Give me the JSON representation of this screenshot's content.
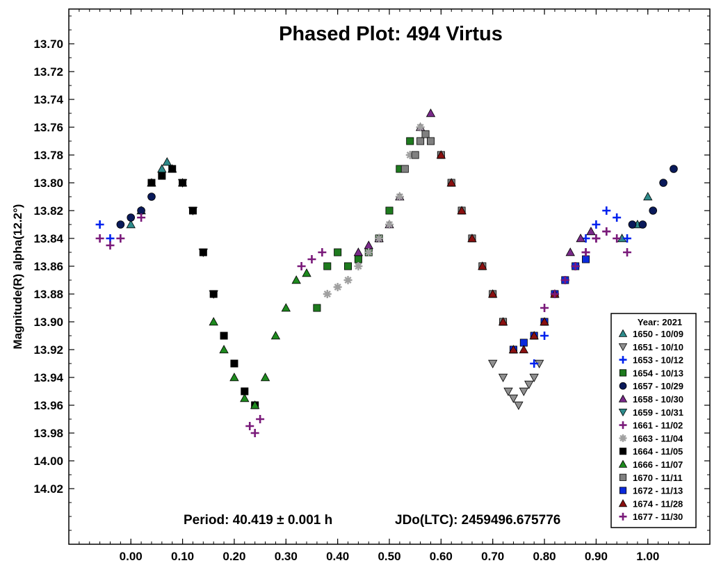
{
  "chart_data": {
    "type": "scatter",
    "title": "Phased Plot: 494 Virtus",
    "xlabel": "",
    "ylabel": "Magnitude(R) alpha(12.2°)",
    "xlim": [
      -0.12,
      1.12
    ],
    "ylim": [
      14.06,
      13.675
    ],
    "y_inverted": true,
    "x_ticks": [
      0.0,
      0.1,
      0.2,
      0.3,
      0.4,
      0.5,
      0.6,
      0.7,
      0.8,
      0.9,
      1.0
    ],
    "x_tick_labels": [
      "0.00",
      "0.10",
      "0.20",
      "0.30",
      "0.40",
      "0.50",
      "0.60",
      "0.70",
      "0.80",
      "0.90",
      "1.00"
    ],
    "y_ticks": [
      13.7,
      13.72,
      13.74,
      13.76,
      13.78,
      13.8,
      13.82,
      13.84,
      13.86,
      13.88,
      13.9,
      13.92,
      13.94,
      13.96,
      13.98,
      14.0,
      14.02
    ],
    "y_tick_labels": [
      "13.70",
      "13.72",
      "13.74",
      "13.76",
      "13.78",
      "13.80",
      "13.82",
      "13.84",
      "13.86",
      "13.88",
      "13.90",
      "13.92",
      "13.94",
      "13.96",
      "13.98",
      "14.00",
      "14.02"
    ],
    "grid": false,
    "annotations": {
      "period": "Period: 40.419 ± 0.001 h",
      "epoch": "JDo(LTC): 2459496.675776"
    },
    "legend": {
      "title": "Year: 2021",
      "placement": "bottom-right"
    },
    "series": [
      {
        "name": "1650 - 10/09",
        "marker": "triangle-up",
        "color": "#2e8b8b",
        "x": [
          0.0,
          0.02,
          0.04,
          0.06,
          0.07,
          0.08,
          0.1,
          0.95,
          0.98,
          1.0
        ],
        "y": [
          13.83,
          13.82,
          13.8,
          13.79,
          13.785,
          13.79,
          13.8,
          13.84,
          13.83,
          13.81
        ]
      },
      {
        "name": "1651 - 10/10",
        "marker": "triangle-down",
        "color": "#909090",
        "x": [
          0.7,
          0.72,
          0.73,
          0.74,
          0.75,
          0.76,
          0.77,
          0.78,
          0.79
        ],
        "y": [
          13.93,
          13.94,
          13.95,
          13.955,
          13.96,
          13.95,
          13.945,
          13.94,
          13.93
        ]
      },
      {
        "name": "1653 - 10/12",
        "marker": "plus",
        "color": "#0022ee",
        "x": [
          -0.06,
          -0.04,
          0.78,
          0.8,
          0.82,
          0.84,
          0.86,
          0.88,
          0.9,
          0.92,
          0.94,
          0.96
        ],
        "y": [
          13.83,
          13.84,
          13.93,
          13.91,
          13.88,
          13.87,
          13.86,
          13.84,
          13.83,
          13.82,
          13.825,
          13.84
        ]
      },
      {
        "name": "1654 - 10/13",
        "marker": "square",
        "color": "#1e7a1e",
        "x": [
          0.36,
          0.38,
          0.4,
          0.42,
          0.44,
          0.46,
          0.48,
          0.5,
          0.52,
          0.54
        ],
        "y": [
          13.89,
          13.86,
          13.85,
          13.86,
          13.855,
          13.85,
          13.84,
          13.82,
          13.79,
          13.77
        ]
      },
      {
        "name": "1657 - 10/29",
        "marker": "circle",
        "color": "#0a1a5a",
        "x": [
          -0.02,
          0.0,
          0.02,
          0.04,
          0.97,
          0.99,
          1.01,
          1.03,
          1.05
        ],
        "y": [
          13.83,
          13.825,
          13.82,
          13.81,
          13.83,
          13.83,
          13.82,
          13.8,
          13.79
        ]
      },
      {
        "name": "1658 - 10/30",
        "marker": "triangle-up",
        "color": "#7a2a8a",
        "x": [
          0.44,
          0.46,
          0.48,
          0.5,
          0.52,
          0.56,
          0.58,
          0.85,
          0.87,
          0.89
        ],
        "y": [
          13.85,
          13.845,
          13.84,
          13.83,
          13.81,
          13.76,
          13.75,
          13.85,
          13.84,
          13.835
        ]
      },
      {
        "name": "1659 - 10/31",
        "marker": "triangle-down",
        "color": "#2e8b8b",
        "x": [
          0.1,
          0.12,
          0.14,
          0.16
        ],
        "y": [
          13.8,
          13.82,
          13.85,
          13.88
        ]
      },
      {
        "name": "1661 - 11/02",
        "marker": "plus",
        "color": "#7a1a7a",
        "x": [
          -0.06,
          -0.04,
          -0.02,
          0.02,
          0.23,
          0.24,
          0.25,
          0.33,
          0.35,
          0.37,
          0.86,
          0.88,
          0.9,
          0.92,
          0.94,
          0.96
        ],
        "y": [
          13.84,
          13.845,
          13.84,
          13.825,
          13.975,
          13.98,
          13.97,
          13.86,
          13.855,
          13.85,
          13.86,
          13.85,
          13.84,
          13.835,
          13.84,
          13.85
        ]
      },
      {
        "name": "1663 - 11/04",
        "marker": "asterisk",
        "color": "#a0a0a0",
        "x": [
          0.38,
          0.4,
          0.42,
          0.44,
          0.46,
          0.48,
          0.5,
          0.52,
          0.54,
          0.56
        ],
        "y": [
          13.88,
          13.875,
          13.87,
          13.86,
          13.85,
          13.84,
          13.83,
          13.81,
          13.78,
          13.76
        ]
      },
      {
        "name": "1664 - 11/05",
        "marker": "square",
        "color": "#000000",
        "x": [
          0.04,
          0.06,
          0.08,
          0.1,
          0.12,
          0.14,
          0.16,
          0.18,
          0.2,
          0.22,
          0.24
        ],
        "y": [
          13.8,
          13.795,
          13.79,
          13.8,
          13.82,
          13.85,
          13.88,
          13.91,
          13.93,
          13.95,
          13.96
        ]
      },
      {
        "name": "1666 - 11/07",
        "marker": "triangle-up",
        "color": "#1e8a1e",
        "x": [
          0.16,
          0.18,
          0.2,
          0.22,
          0.24,
          0.26,
          0.28,
          0.3,
          0.32,
          0.34
        ],
        "y": [
          13.9,
          13.92,
          13.94,
          13.955,
          13.96,
          13.94,
          13.91,
          13.89,
          13.87,
          13.865
        ]
      },
      {
        "name": "1670 - 11/11",
        "marker": "square",
        "color": "#808080",
        "x": [
          0.53,
          0.55,
          0.56,
          0.57,
          0.58,
          0.6,
          0.62,
          0.64,
          0.66,
          0.68,
          0.7,
          0.72
        ],
        "y": [
          13.79,
          13.78,
          13.77,
          13.765,
          13.77,
          13.78,
          13.8,
          13.82,
          13.84,
          13.86,
          13.88,
          13.9
        ]
      },
      {
        "name": "1672 - 11/13",
        "marker": "square",
        "color": "#0a2adc",
        "x": [
          0.74,
          0.76,
          0.78,
          0.8,
          0.82,
          0.84,
          0.86,
          0.88
        ],
        "y": [
          13.92,
          13.915,
          13.91,
          13.9,
          13.88,
          13.87,
          13.86,
          13.855
        ]
      },
      {
        "name": "1674 - 11/28",
        "marker": "triangle-up",
        "color": "#8a1010",
        "x": [
          0.6,
          0.62,
          0.64,
          0.66,
          0.68,
          0.7,
          0.72,
          0.74,
          0.76,
          0.78,
          0.8,
          0.82
        ],
        "y": [
          13.78,
          13.8,
          13.82,
          13.84,
          13.86,
          13.88,
          13.9,
          13.92,
          13.92,
          13.91,
          13.9,
          13.88
        ]
      },
      {
        "name": "1677 - 11/30",
        "marker": "plus",
        "color": "#7a1a7a",
        "x": [
          0.8,
          0.82,
          0.84,
          0.86,
          0.88,
          0.9,
          0.92
        ],
        "y": [
          13.89,
          13.88,
          13.87,
          13.86,
          13.85,
          13.84,
          13.835
        ]
      }
    ]
  }
}
